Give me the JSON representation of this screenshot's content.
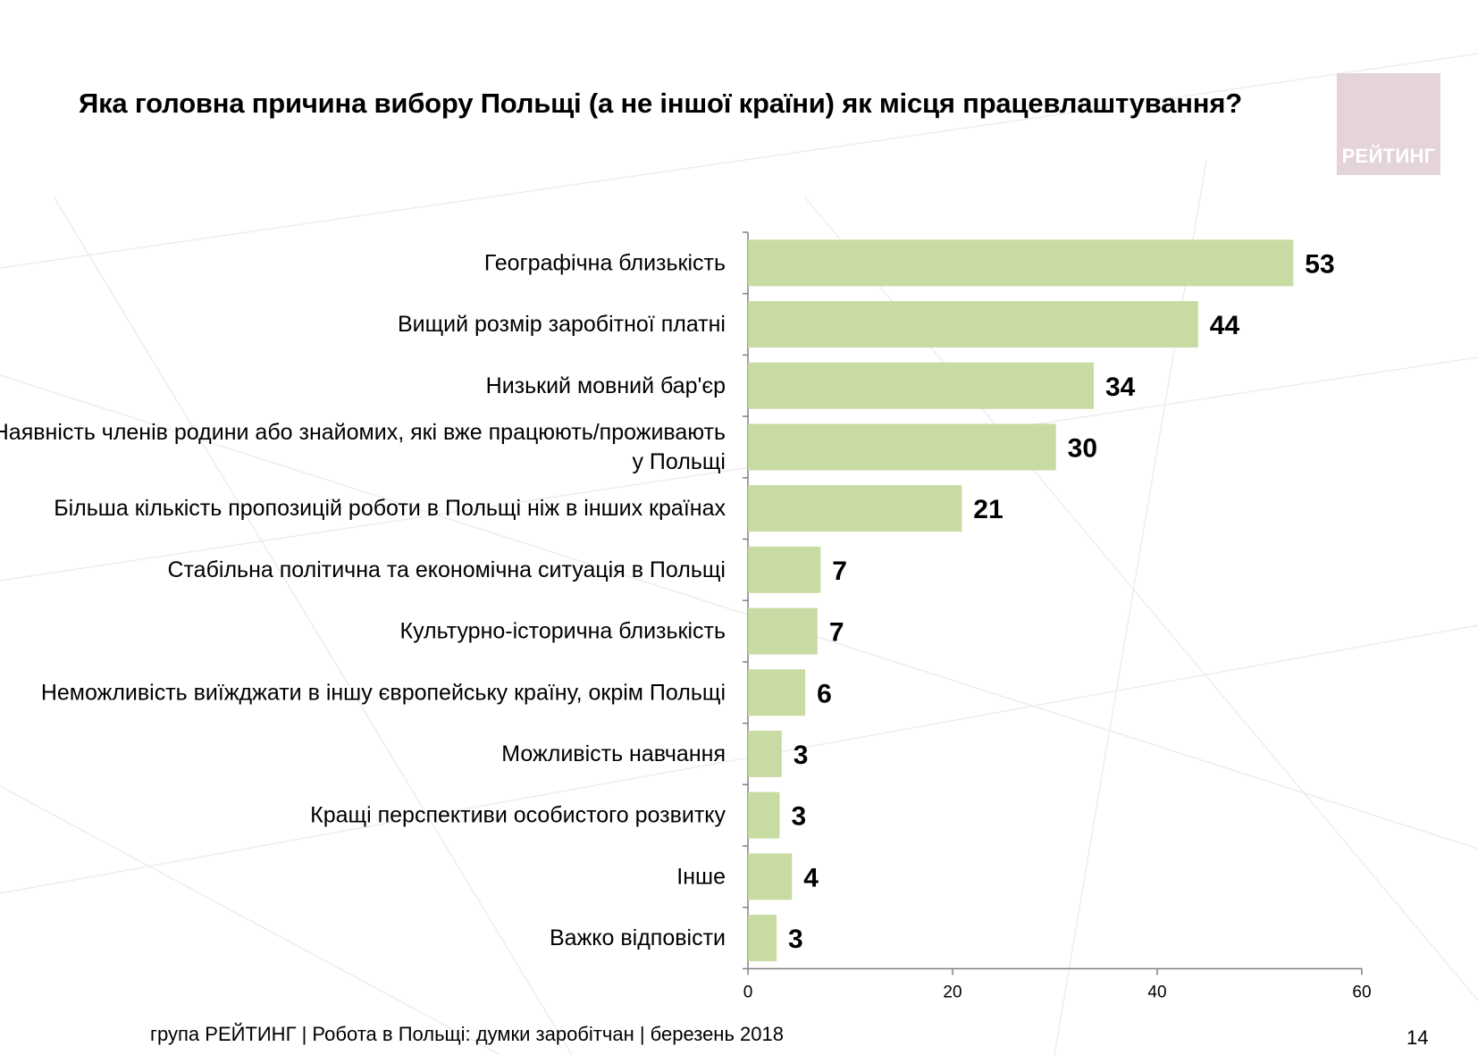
{
  "page": {
    "title": "Яка головна причина вибору Польщі (а не іншої країни) як місця працевлаштування?",
    "logo_text": "РЕЙТИНГ",
    "footer": "група РЕЙТИНГ  | Робота в Польщі: думки заробітчан  |  березень 2018",
    "page_number": "14",
    "colors": {
      "bar": "#c8dba3",
      "axis": "#808080"
    }
  },
  "chart_data": {
    "type": "bar",
    "orientation": "horizontal",
    "categories": [
      "Географічна близькість",
      "Вищий розмір заробітної платні",
      "Низький мовний бар'єр",
      "Наявність членів родини або знайомих, які вже працюють/проживають у Польщі",
      "Більша кількість пропозицій роботи в Польщі ніж в інших країнах",
      "Стабільна політична та економічна ситуація в Польщі",
      "Культурно-історична близькість",
      "Неможливість виїжджати в іншу європейську країну, окрім Польщі",
      "Можливість навчання",
      "Кращі перспективи особистого розвитку",
      "Інше",
      "Важко відповісти"
    ],
    "category_lines": [
      [
        "Географічна близькість"
      ],
      [
        "Вищий розмір заробітної платні"
      ],
      [
        "Низький мовний бар'єр"
      ],
      [
        "Наявність членів родини або знайомих, які вже працюють/проживають",
        "у Польщі"
      ],
      [
        "Більша кількість пропозицій роботи в Польщі ніж в інших країнах"
      ],
      [
        "Стабільна політична та економічна ситуація в Польщі"
      ],
      [
        "Культурно-історична близькість"
      ],
      [
        "Неможливість виїжджати в іншу європейську країну, окрім Польщі"
      ],
      [
        "Можливість навчання"
      ],
      [
        "Кращі перспективи особистого розвитку"
      ],
      [
        "Інше"
      ],
      [
        "Важко відповісти"
      ]
    ],
    "values": [
      53.3,
      44,
      33.8,
      30.1,
      20.9,
      7.1,
      6.8,
      5.6,
      3.3,
      3.1,
      4.3,
      2.8
    ],
    "data_labels": [
      "53",
      "44",
      "34",
      "30",
      "21",
      "7",
      "7",
      "6",
      "3",
      "3",
      "4",
      "3"
    ],
    "xlim": [
      0,
      60
    ],
    "xticks": [
      0,
      20,
      40,
      60
    ],
    "grid": false,
    "legend": "none"
  }
}
